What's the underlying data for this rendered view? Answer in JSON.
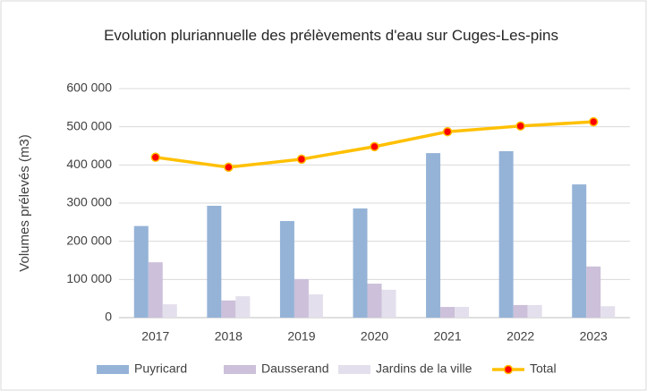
{
  "chart_data": {
    "type": "bar",
    "title": "Evolution pluriannuelle des prélèvements d'eau sur Cuges-Les-pins",
    "y_label": "Volumes prélevés (m3)",
    "categories": [
      "2017",
      "2018",
      "2019",
      "2020",
      "2021",
      "2022",
      "2023"
    ],
    "series": [
      {
        "name": "Puyricard",
        "color": "#95b3d7",
        "type": "bar",
        "values": [
          240000,
          293000,
          253000,
          286000,
          431000,
          436000,
          349000
        ]
      },
      {
        "name": "Dausserand",
        "color": "#ccc0da",
        "type": "bar",
        "values": [
          145000,
          45000,
          101000,
          89000,
          28000,
          33000,
          134000
        ]
      },
      {
        "name": "Jardins de la ville",
        "color": "#e4dfec",
        "type": "bar",
        "values": [
          35000,
          56000,
          61000,
          73000,
          28000,
          33000,
          30000
        ]
      },
      {
        "name": "Total",
        "color": "#ffc000",
        "marker_color": "#ff0000",
        "type": "line",
        "values": [
          420000,
          394000,
          415000,
          448000,
          487000,
          502000,
          513000
        ]
      }
    ],
    "ylim": [
      0,
      600000
    ],
    "yticks": [
      0,
      {
        "value": 100000,
        "label": "100 000"
      },
      {
        "value": 200000,
        "label": "200 000"
      },
      {
        "value": 300000,
        "label": "300 000"
      },
      {
        "value": 400000,
        "label": "400 000"
      },
      {
        "value": 500000,
        "label": "500 000"
      },
      {
        "value": 600000,
        "label": "600 000"
      }
    ],
    "grid": true,
    "legend": "bottom"
  }
}
